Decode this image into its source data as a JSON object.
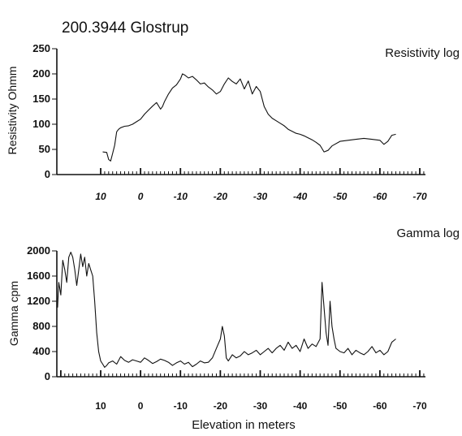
{
  "page": {
    "title": "200.3944 Glostrup",
    "xlabel": "Elevation in meters"
  },
  "chart_data": [
    {
      "type": "line",
      "title": "Resistivity log",
      "ylabel": "Resistivity Ohmm",
      "xlabel": "",
      "xlim": [
        24,
        -78
      ],
      "ylim": [
        0,
        250
      ],
      "xticks": [
        10,
        0,
        -10,
        -20,
        -30,
        -40,
        -50,
        -60,
        -70
      ],
      "xtick_labels": [
        "10",
        "0",
        "-10",
        "-20",
        "-30",
        "-40",
        "-50",
        "-60",
        "-70"
      ],
      "yticks": [
        0,
        50,
        100,
        150,
        200,
        250
      ],
      "ytick_labels": [
        "0",
        "50",
        "100",
        "150",
        "200",
        "250"
      ],
      "grid": false,
      "series": [
        {
          "x": [
            9.5,
            8.5,
            8,
            7.5,
            7,
            6.5,
            6,
            5.5,
            5,
            4,
            3,
            2,
            1,
            0,
            -1,
            -2,
            -3,
            -4,
            -5,
            -5.5,
            -6,
            -7,
            -8,
            -9,
            -10,
            -10.5,
            -11,
            -12,
            -13,
            -14,
            -15,
            -16,
            -17,
            -18,
            -19,
            -20,
            -21,
            -22,
            -23,
            -24,
            -25,
            -26,
            -27,
            -28,
            -29,
            -30,
            -31,
            -32,
            -33,
            -34,
            -35,
            -36,
            -37,
            -38,
            -39,
            -40,
            -41,
            -42,
            -43,
            -44,
            -45,
            -46,
            -47,
            -48,
            -50,
            -52,
            -54,
            -56,
            -58,
            -60,
            -61,
            -62,
            -63,
            -64
          ],
          "y": [
            45,
            44,
            30,
            27,
            42,
            58,
            85,
            90,
            93,
            96,
            97,
            100,
            105,
            110,
            120,
            128,
            136,
            143,
            130,
            135,
            145,
            160,
            172,
            178,
            190,
            200,
            198,
            192,
            195,
            188,
            180,
            182,
            174,
            168,
            160,
            165,
            180,
            192,
            185,
            180,
            190,
            170,
            186,
            160,
            175,
            165,
            135,
            120,
            112,
            107,
            102,
            97,
            90,
            86,
            82,
            80,
            77,
            73,
            69,
            64,
            58,
            45,
            48,
            57,
            66,
            68,
            70,
            72,
            70,
            68,
            60,
            66,
            78,
            80
          ]
        }
      ]
    },
    {
      "type": "line",
      "title": "Gamma log",
      "ylabel": "Gamma cpm",
      "xlabel": "Elevation in meters",
      "xlim": [
        24,
        -78
      ],
      "ylim": [
        0,
        2000
      ],
      "xticks": [
        10,
        0,
        -10,
        -20,
        -30,
        -40,
        -50,
        -60,
        -70
      ],
      "xtick_labels": [
        "10",
        "0",
        "-10",
        "-20",
        "-30",
        "-40",
        "-50",
        "-60",
        "-70"
      ],
      "yticks": [
        0,
        400,
        800,
        1200,
        1600,
        2000
      ],
      "ytick_labels": [
        "0",
        "400",
        "800",
        "1200",
        "1600",
        "2000"
      ],
      "grid": false,
      "series": [
        {
          "x": [
            20.8,
            20.5,
            20,
            19.5,
            19,
            18.5,
            18,
            17.5,
            17,
            16.5,
            16,
            15.5,
            15,
            14.5,
            14,
            13.5,
            13,
            12.5,
            12,
            11.5,
            11,
            10.5,
            10,
            9.5,
            9,
            8.5,
            8,
            7,
            6,
            5,
            4,
            3,
            2,
            1,
            0,
            -1,
            -2,
            -3,
            -4,
            -5,
            -6,
            -7,
            -8,
            -9,
            -10,
            -11,
            -12,
            -13,
            -14,
            -15,
            -16,
            -17,
            -18,
            -19,
            -20,
            -20.5,
            -21,
            -21.5,
            -22,
            -23,
            -24,
            -25,
            -26,
            -27,
            -28,
            -29,
            -30,
            -31,
            -32,
            -33,
            -34,
            -35,
            -36,
            -37,
            -38,
            -39,
            -40,
            -41,
            -42,
            -43,
            -44,
            -45,
            -45.5,
            -46,
            -46.5,
            -47,
            -47.5,
            -48,
            -48.5,
            -49,
            -50,
            -51,
            -52,
            -53,
            -54,
            -55,
            -56,
            -57,
            -58,
            -59,
            -60,
            -61,
            -62,
            -63,
            -64
          ],
          "y": [
            1100,
            1500,
            1300,
            1850,
            1700,
            1500,
            1900,
            1980,
            1900,
            1700,
            1450,
            1700,
            1950,
            1750,
            1900,
            1600,
            1800,
            1700,
            1600,
            1200,
            700,
            400,
            250,
            200,
            150,
            180,
            220,
            250,
            200,
            320,
            260,
            230,
            270,
            250,
            230,
            300,
            260,
            210,
            240,
            280,
            260,
            230,
            180,
            220,
            250,
            200,
            230,
            160,
            200,
            250,
            220,
            230,
            300,
            450,
            600,
            800,
            650,
            300,
            250,
            350,
            300,
            330,
            400,
            350,
            380,
            420,
            350,
            400,
            450,
            380,
            450,
            500,
            420,
            550,
            450,
            500,
            400,
            600,
            450,
            520,
            480,
            600,
            1500,
            1100,
            700,
            500,
            1200,
            800,
            600,
            450,
            400,
            380,
            450,
            350,
            420,
            380,
            350,
            400,
            480,
            380,
            420,
            350,
            400,
            550,
            600
          ]
        }
      ]
    }
  ]
}
